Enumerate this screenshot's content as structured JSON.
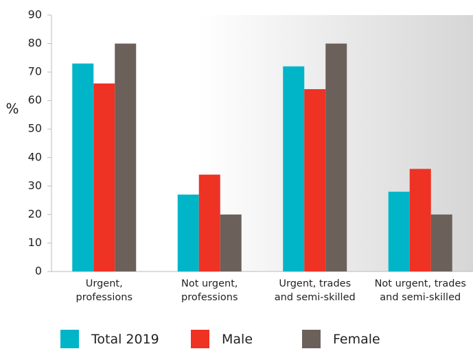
{
  "chart_data": {
    "type": "bar",
    "y_label": "%",
    "categories": [
      "Urgent,\nprofessions",
      "Not urgent,\nprofessions",
      "Urgent, trades\nand semi-skilled",
      "Not urgent, trades\nand semi-skilled"
    ],
    "series": [
      {
        "name": "Total 2019",
        "color": "#00b5c8",
        "values": [
          73,
          27,
          72,
          28
        ]
      },
      {
        "name": "Male",
        "color": "#ee3224",
        "values": [
          66,
          34,
          64,
          36
        ]
      },
      {
        "name": "Female",
        "color": "#6c605a",
        "values": [
          80,
          20,
          80,
          20
        ]
      }
    ],
    "ylim": [
      0,
      90
    ],
    "yticks": [
      0,
      10,
      20,
      30,
      40,
      50,
      60,
      70,
      80,
      90
    ],
    "legend": "bottom"
  }
}
